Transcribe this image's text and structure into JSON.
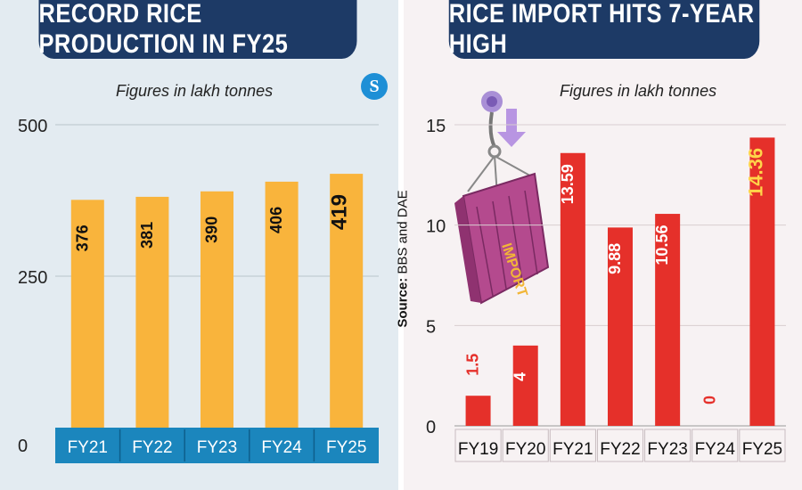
{
  "source_label": "Source:",
  "source_text": "BBS and DAE",
  "logo_text": "S",
  "chart_data": [
    {
      "type": "bar",
      "title": "RECORD RICE PRODUCTION IN FY25",
      "subtitle": "Figures in lakh tonnes",
      "categories": [
        "FY21",
        "FY22",
        "FY23",
        "FY24",
        "FY25"
      ],
      "values": [
        376,
        381,
        390,
        406,
        419
      ],
      "value_labels": [
        "376",
        "381",
        "390",
        "406",
        "419"
      ],
      "yticks": [
        "500",
        "250",
        "0"
      ],
      "ylim": [
        0,
        500
      ],
      "grid": true,
      "colors": {
        "bar": "#f9b43c",
        "axis_band": "#1b86bd",
        "label": "#111111",
        "highlight": "#111111"
      }
    },
    {
      "type": "bar",
      "title": "RICE IMPORT HITS 7-YEAR HIGH",
      "subtitle": "Figures in lakh tonnes",
      "categories": [
        "FY19",
        "FY20",
        "FY21",
        "FY22",
        "FY23",
        "FY24",
        "FY25"
      ],
      "values": [
        1.5,
        4,
        13.59,
        9.88,
        10.56,
        0,
        14.36
      ],
      "value_labels": [
        "1.5",
        "4",
        "13.59",
        "9.88",
        "10.56",
        "0",
        "14.36"
      ],
      "yticks": [
        "15",
        "10",
        "5",
        "0"
      ],
      "ylim": [
        0,
        15
      ],
      "grid": true,
      "colors": {
        "bar": "#e5302a",
        "label": "#ffffff",
        "highlight": "#ffd54a",
        "zero_label": "#e5302a"
      },
      "illustration": "import-container-icon"
    }
  ]
}
